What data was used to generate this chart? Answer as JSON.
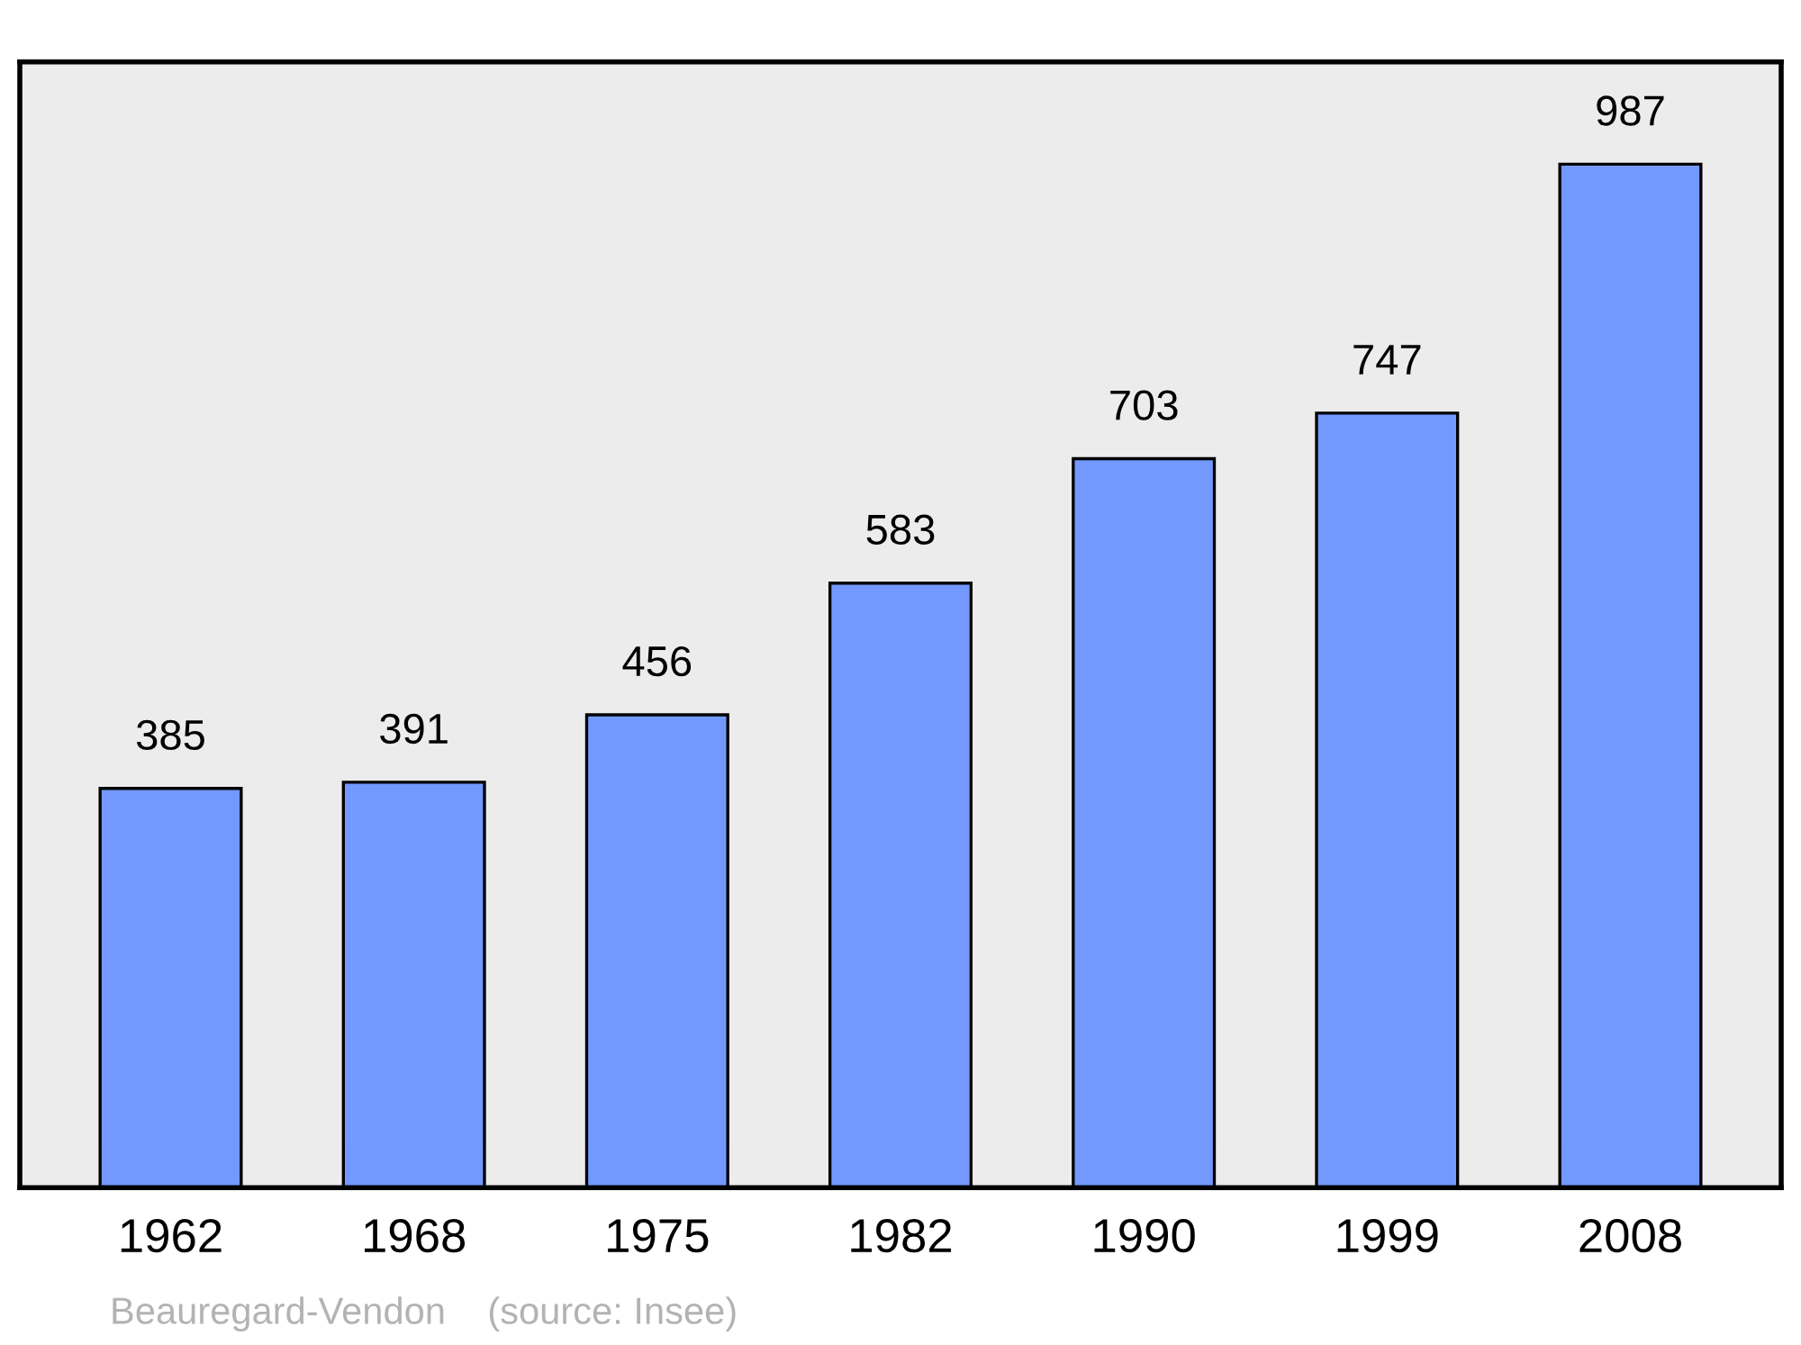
{
  "chart_data": {
    "type": "bar",
    "categories": [
      "1962",
      "1968",
      "1975",
      "1982",
      "1990",
      "1999",
      "2008"
    ],
    "values": [
      385,
      391,
      456,
      583,
      703,
      747,
      987
    ],
    "color": "#7399ff",
    "data_labels": true,
    "tick_labels": "x",
    "grid": false,
    "legend": false,
    "annotations": [
      "Beauregard-Vendon    (source: Insee)"
    ]
  }
}
